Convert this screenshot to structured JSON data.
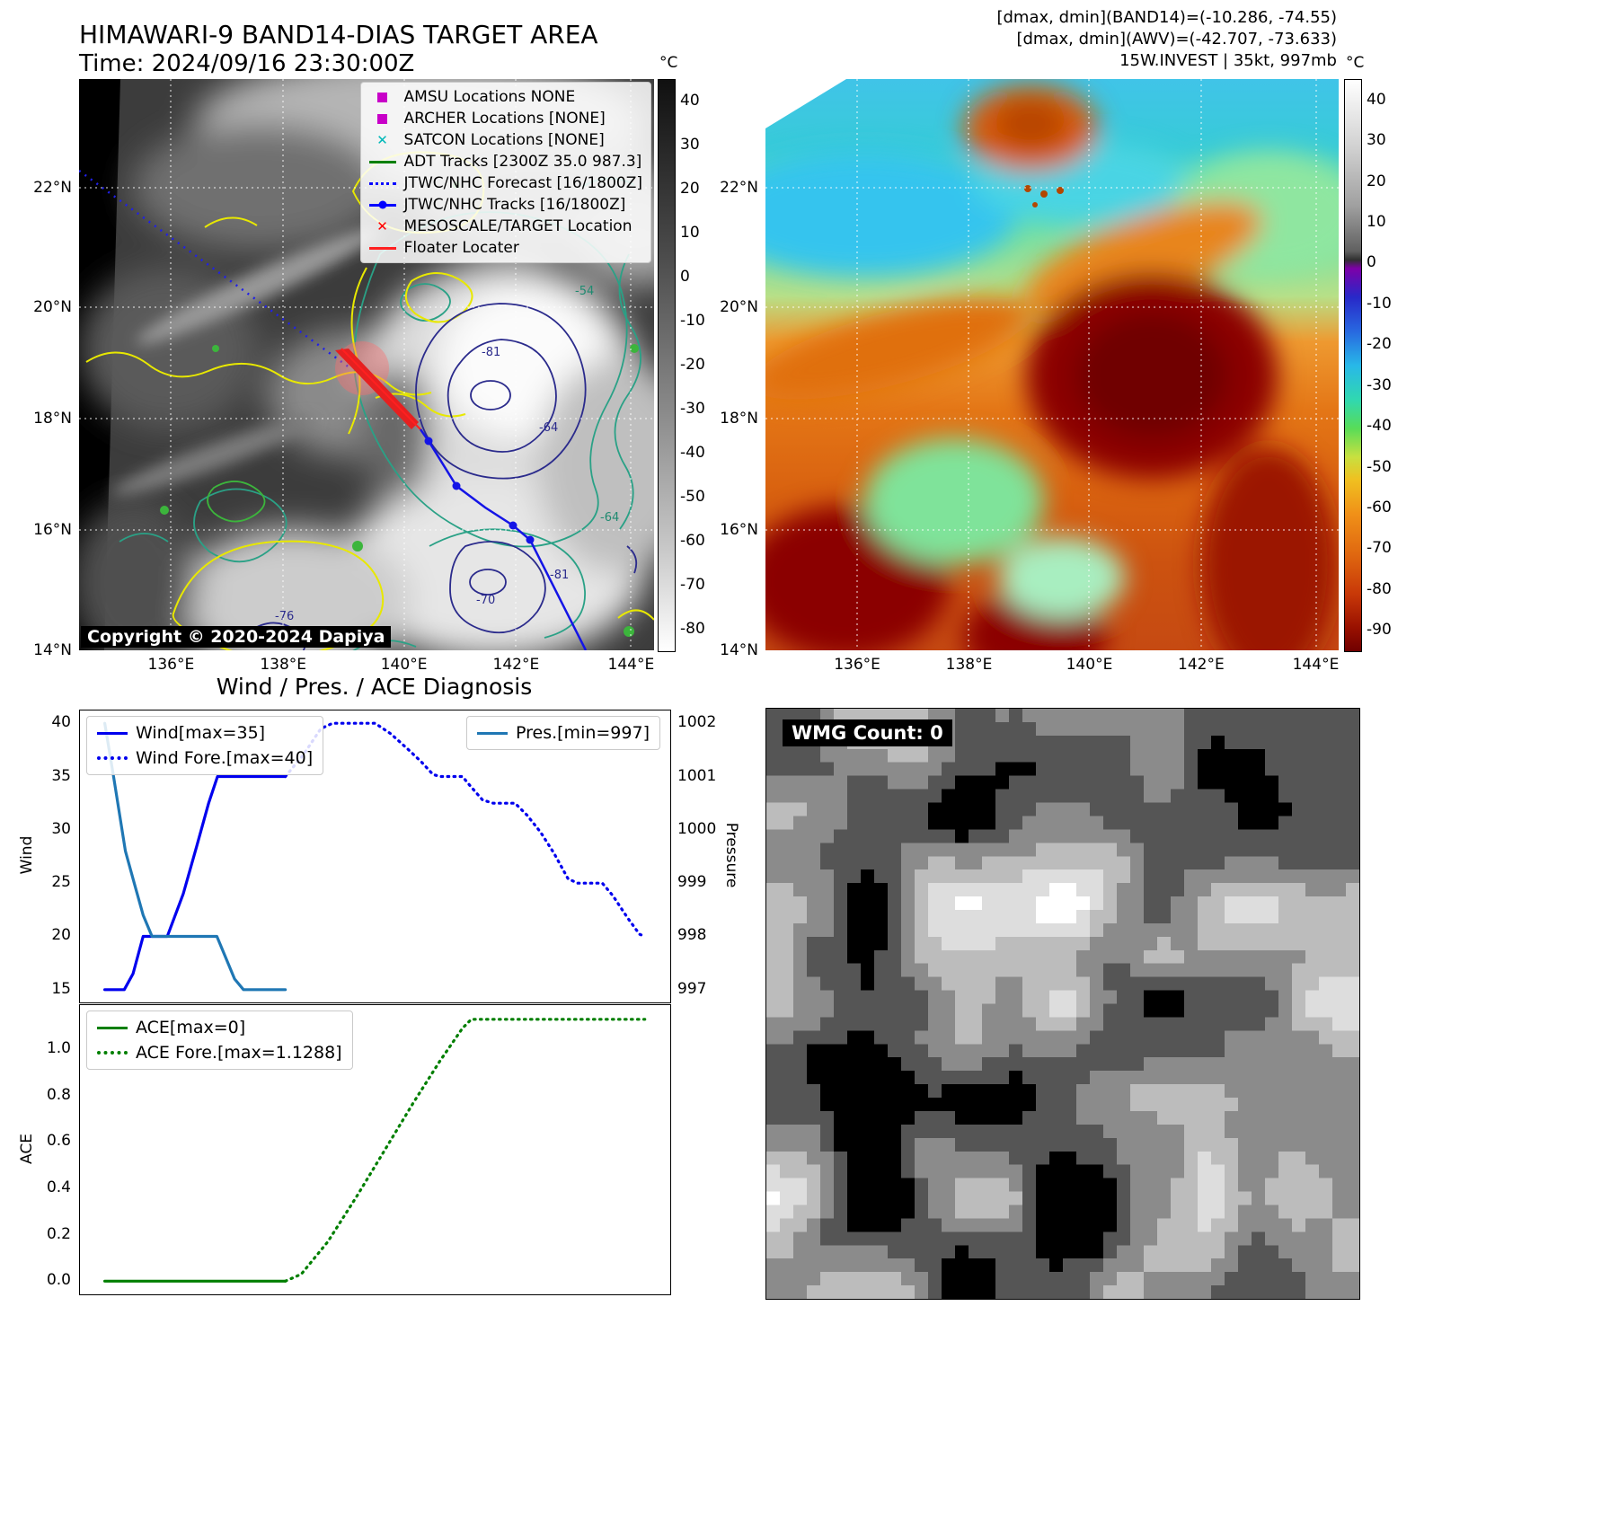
{
  "panel_band14": {
    "title": "HIMAWARI-9 BAND14-DIAS TARGET AREA",
    "time_label": "Time: 2024/09/16 23:30:00Z",
    "copyright": "Copyright © 2020-2024 Dapiya",
    "colorbar": {
      "unit": "°C",
      "ticks": [
        40,
        30,
        20,
        10,
        0,
        -10,
        -20,
        -30,
        -40,
        -50,
        -60,
        -70,
        -80
      ]
    },
    "legend": [
      {
        "label": "AMSU Locations NONE",
        "marker": "square",
        "color": "#c800c8"
      },
      {
        "label": "ARCHER Locations [NONE]",
        "marker": "square",
        "color": "#c800c8"
      },
      {
        "label": "SATCON Locations [NONE]",
        "marker": "x",
        "color": "#00b8b8"
      },
      {
        "label": "ADT Tracks [2300Z 35.0 987.3]",
        "marker": "line",
        "color": "#008000"
      },
      {
        "label": "JTWC/NHC Forecast [16/1800Z]",
        "marker": "dotted-line",
        "color": "#0000ff"
      },
      {
        "label": "JTWC/NHC Tracks [16/1800Z]",
        "marker": "line-marker",
        "color": "#0000ff"
      },
      {
        "label": "MESOSCALE/TARGET Location",
        "marker": "x",
        "color": "#ff0000"
      },
      {
        "label": "Floater Locater",
        "marker": "line",
        "color": "#ff2020"
      }
    ],
    "lat_ticks": [
      "22°N",
      "20°N",
      "18°N",
      "16°N",
      "14°N"
    ],
    "lon_ticks": [
      "136°E",
      "138°E",
      "140°E",
      "142°E",
      "144°E"
    ],
    "contour_labels": [
      "-54",
      "-81",
      "-64",
      "-76",
      "-70",
      "-81",
      "-64"
    ]
  },
  "panel_awv": {
    "header_lines": [
      "[dmax, dmin](BAND14)=(-10.286, -74.55)",
      "[dmax, dmin](AWV)=(-42.707, -73.633)",
      "15W.INVEST | 35kt, 997mb"
    ],
    "colorbar": {
      "unit": "°C",
      "ticks": [
        40,
        30,
        20,
        10,
        0,
        -10,
        -20,
        -30,
        -40,
        -50,
        -60,
        -70,
        -80,
        -90
      ]
    },
    "lat_ticks": [
      "22°N",
      "20°N",
      "18°N",
      "16°N",
      "14°N"
    ],
    "lon_ticks": [
      "136°E",
      "138°E",
      "140°E",
      "142°E",
      "144°E"
    ]
  },
  "diagnosis_title": "Wind / Pres. / ACE Diagnosis",
  "wmg": {
    "label": "WMG Count: 0"
  },
  "icons": {
    "x_marker": "✕"
  },
  "chart_data": [
    {
      "type": "line",
      "title": "Wind / Pres. / ACE Diagnosis",
      "ylabel_left": "Wind",
      "ylabel_right": "Pressure",
      "ylim_left": [
        13.8,
        41.2
      ],
      "yticks_left": [
        15,
        20,
        25,
        30,
        35,
        40
      ],
      "ylim_right": [
        996.76,
        1002.24
      ],
      "yticks_right": [
        997,
        998,
        999,
        1000,
        1001,
        1002
      ],
      "x_range": [
        0,
        1
      ],
      "grid": false,
      "legend_position": "upper left / upper right",
      "series": [
        {
          "name": "Wind[max=35]",
          "color": "#0000ee",
          "style": "solid",
          "axis": "left",
          "points": [
            [
              0.042,
              15
            ],
            [
              0.075,
              15
            ],
            [
              0.09,
              16.5
            ],
            [
              0.107,
              20
            ],
            [
              0.148,
              20
            ],
            [
              0.175,
              24
            ],
            [
              0.198,
              28.5
            ],
            [
              0.218,
              32.5
            ],
            [
              0.233,
              35
            ],
            [
              0.348,
              35
            ]
          ]
        },
        {
          "name": "Wind Fore.[max=40]",
          "color": "#0000ee",
          "style": "dotted",
          "axis": "left",
          "points": [
            [
              0.348,
              35
            ],
            [
              0.378,
              37
            ],
            [
              0.408,
              39.5
            ],
            [
              0.428,
              40
            ],
            [
              0.5,
              40
            ],
            [
              0.527,
              39
            ],
            [
              0.557,
              37.5
            ],
            [
              0.578,
              36.4
            ],
            [
              0.598,
              35.2
            ],
            [
              0.61,
              35
            ],
            [
              0.648,
              35
            ],
            [
              0.663,
              34
            ],
            [
              0.682,
              32.8
            ],
            [
              0.7,
              32.5
            ],
            [
              0.737,
              32.5
            ],
            [
              0.757,
              31.4
            ],
            [
              0.78,
              29.8
            ],
            [
              0.803,
              27.8
            ],
            [
              0.827,
              25.4
            ],
            [
              0.843,
              25
            ],
            [
              0.885,
              25
            ],
            [
              0.903,
              23.8
            ],
            [
              0.927,
              21.8
            ],
            [
              0.948,
              20.2
            ],
            [
              0.957,
              20
            ]
          ]
        },
        {
          "name": "Pres.[min=997]",
          "color": "#1f77b4",
          "style": "solid",
          "axis": "right",
          "points": [
            [
              0.042,
              1002
            ],
            [
              0.057,
              1001
            ],
            [
              0.077,
              999.6
            ],
            [
              0.092,
              999
            ],
            [
              0.107,
              998.4
            ],
            [
              0.122,
              998
            ],
            [
              0.232,
              998
            ],
            [
              0.262,
              997.2
            ],
            [
              0.277,
              997
            ],
            [
              0.348,
              997
            ]
          ]
        }
      ]
    },
    {
      "type": "line",
      "ylabel_left": "ACE",
      "ylim_left": [
        -0.057,
        1.19
      ],
      "yticks_left": [
        0,
        0.2,
        0.4,
        0.6,
        0.8,
        1
      ],
      "ytick_decimals": 1,
      "x_range": [
        0,
        1
      ],
      "grid": false,
      "legend_position": "upper left",
      "series": [
        {
          "name": "ACE[max=0]",
          "color": "#007f00",
          "style": "solid",
          "axis": "left",
          "points": [
            [
              0.042,
              0
            ],
            [
              0.348,
              0
            ]
          ]
        },
        {
          "name": "ACE Fore.[max=1.1288]",
          "color": "#007f00",
          "style": "dotted",
          "axis": "left",
          "points": [
            [
              0.348,
              0
            ],
            [
              0.375,
              0.03
            ],
            [
              0.42,
              0.17
            ],
            [
              0.47,
              0.37
            ],
            [
              0.52,
              0.58
            ],
            [
              0.565,
              0.77
            ],
            [
              0.61,
              0.95
            ],
            [
              0.648,
              1.09
            ],
            [
              0.663,
              1.1288
            ],
            [
              0.957,
              1.1288
            ]
          ]
        }
      ]
    }
  ]
}
